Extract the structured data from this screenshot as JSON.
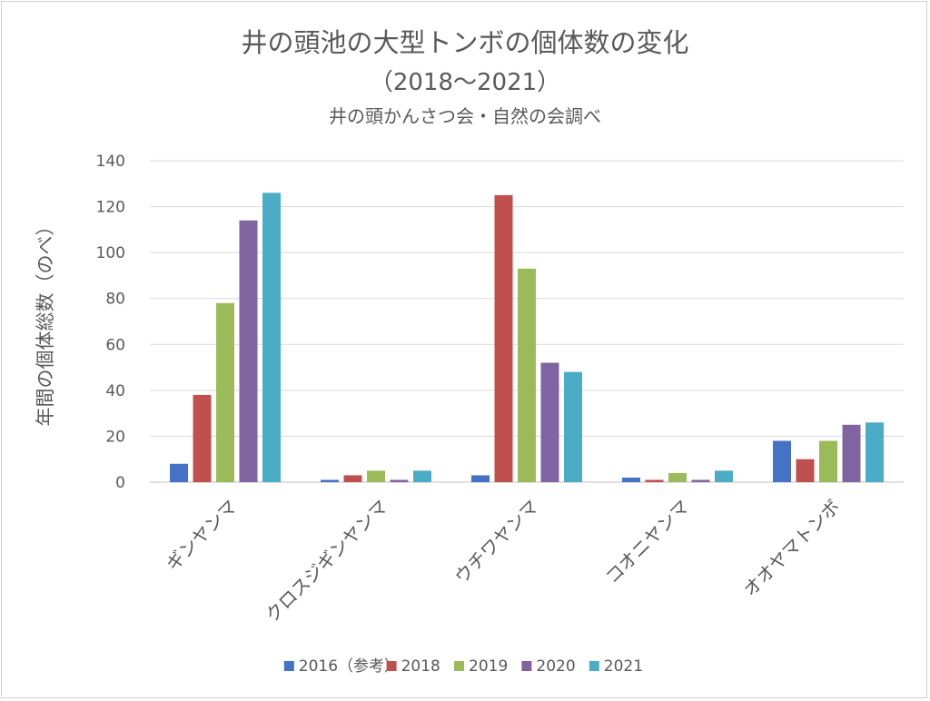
{
  "title": "井の頭池の大型トンボの個体数の変化",
  "subtitle_years": "（2018〜2021）",
  "subtitle_source": "井の頭かんさつ会・自然の会調べ",
  "chart_data": {
    "type": "bar",
    "title": "井の頭池の大型トンボの個体数の変化",
    "subtitle": "（2018〜2021）",
    "source": "井の頭かんさつ会・自然の会調べ",
    "xlabel": "",
    "ylabel": "年間の個体総数（のべ）",
    "ylim": [
      0,
      140
    ],
    "yticks": [
      0,
      20,
      40,
      60,
      80,
      100,
      120,
      140
    ],
    "grid": true,
    "legend_position": "bottom",
    "categories": [
      "ギンヤンマ",
      "クロスジギンヤンマ",
      "ウチワヤンマ",
      "コオニヤンマ",
      "オオヤマトンボ"
    ],
    "series": [
      {
        "name": "2016（参考）",
        "color": "#4472c4",
        "values": [
          8,
          1,
          3,
          2,
          18
        ]
      },
      {
        "name": "2018",
        "color": "#c0504d",
        "values": [
          38,
          3,
          125,
          1,
          10
        ]
      },
      {
        "name": "2019",
        "color": "#9bbb59",
        "values": [
          78,
          5,
          93,
          4,
          18
        ]
      },
      {
        "name": "2020",
        "color": "#8064a2",
        "values": [
          114,
          1,
          52,
          1,
          25
        ]
      },
      {
        "name": "2021",
        "color": "#4bacc6",
        "values": [
          126,
          5,
          48,
          5,
          26
        ]
      }
    ]
  }
}
